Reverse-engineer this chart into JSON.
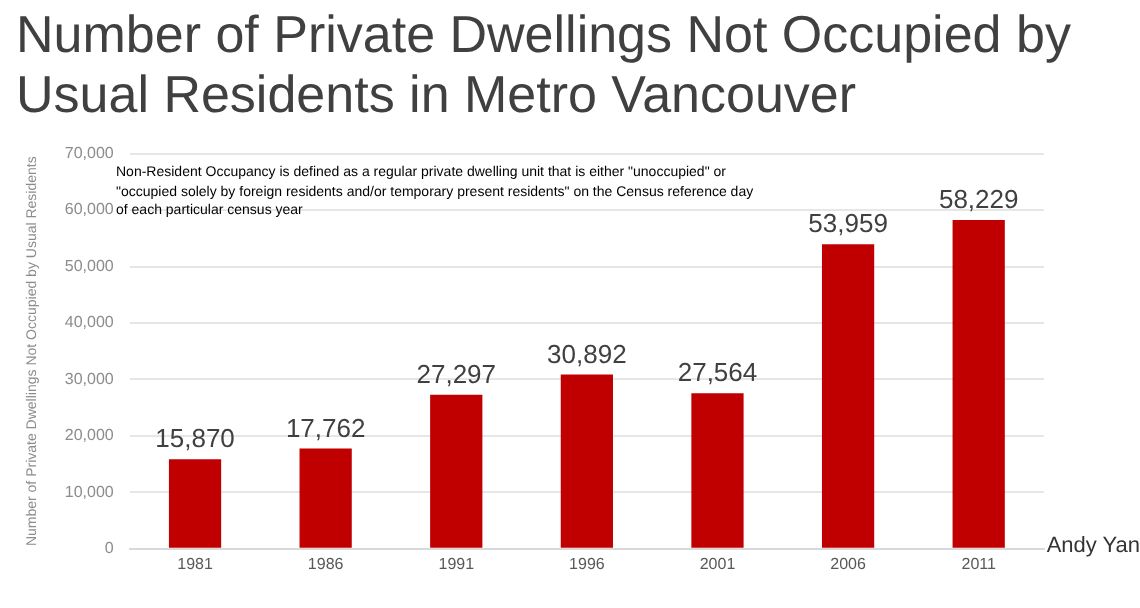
{
  "chart_data": {
    "type": "bar",
    "title": "Number of Private Dwellings Not Occupied by Usual Residents in Metro Vancouver",
    "ylabel": "Number of Private Dwellings Not Occupied by Usual Residents",
    "annotations": [
      "Non-Resident Occupancy is defined as a regular private dwelling unit that is either \"unoccupied\" or \"occupied solely by foreign residents and/or temporary present residents\" on the Census reference day of each particular census year",
      "Andy Yan"
    ],
    "categories": [
      "1981",
      "1986",
      "1991",
      "1996",
      "2001",
      "2006",
      "2011"
    ],
    "values": [
      15870,
      17762,
      27297,
      30892,
      27564,
      53959,
      58229
    ],
    "value_labels": [
      "15,870",
      "17,762",
      "27,297",
      "30,892",
      "27,564",
      "53,959",
      "58,229"
    ],
    "color": "#c00000",
    "ylim": [
      0,
      70000
    ],
    "yticks": [
      0,
      {
        "value": 10000,
        "label": "10,000"
      },
      {
        "value": 20000,
        "label": "20,000"
      },
      {
        "value": 30000,
        "label": "30,000"
      },
      {
        "value": 40000,
        "label": "40,000"
      },
      {
        "value": 50000,
        "label": "50,000"
      },
      {
        "value": 60000,
        "label": "60,000"
      },
      {
        "value": 70000,
        "label": "70,000"
      }
    ],
    "grid": "y",
    "legend": false
  }
}
